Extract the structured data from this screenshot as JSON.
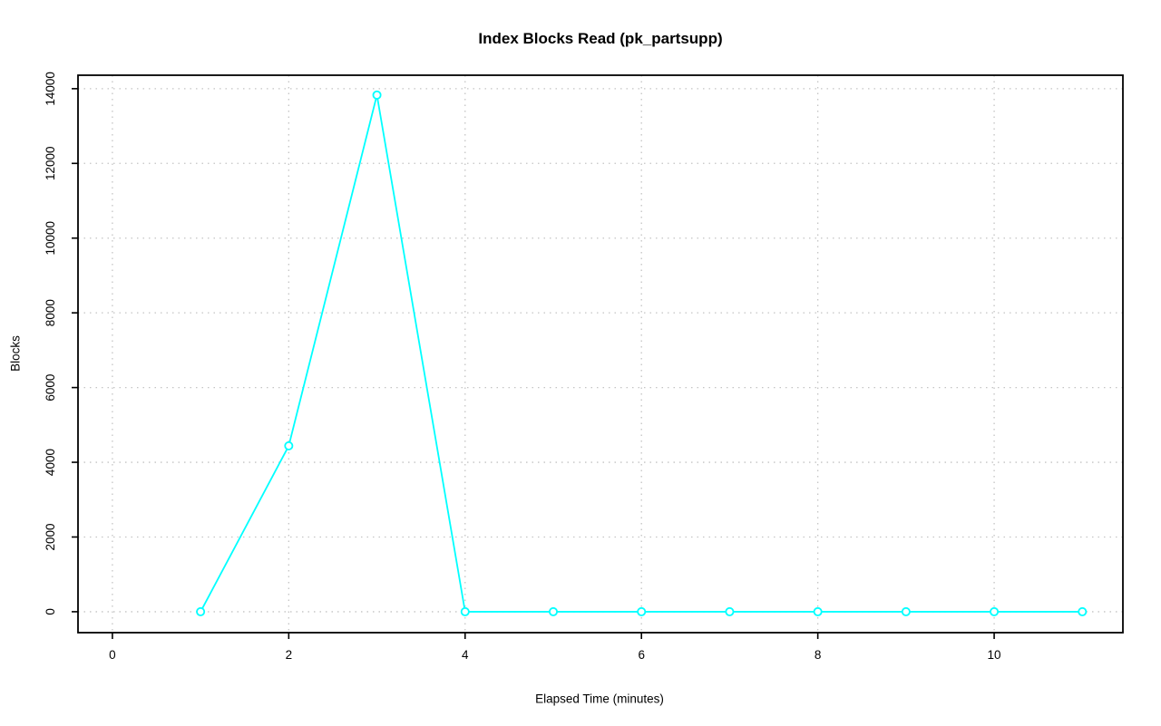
{
  "page": {
    "background": "#ffffff"
  },
  "chart_data": {
    "type": "line",
    "title": "Index Blocks Read (pk_partsupp)",
    "xlabel": "Elapsed Time (minutes)",
    "ylabel": "Blocks",
    "x": [
      1,
      2,
      3,
      4,
      5,
      6,
      7,
      8,
      9,
      10,
      11
    ],
    "values": [
      0,
      4440,
      13830,
      0,
      0,
      0,
      0,
      0,
      0,
      0,
      0
    ],
    "x_ticks": [
      0,
      2,
      4,
      6,
      8,
      10
    ],
    "x_tick_labels": [
      "0",
      "2",
      "4",
      "6",
      "8",
      "10"
    ],
    "y_ticks": [
      0,
      2000,
      4000,
      6000,
      8000,
      10000,
      12000,
      14000
    ],
    "y_tick_labels": [
      "0",
      "2000",
      "4000",
      "6000",
      "8000",
      "10000",
      "12000",
      "14000"
    ],
    "xlim": [
      -0.39,
      11.46
    ],
    "ylim": [
      -560,
      14360
    ],
    "grid": "dotted",
    "legend": "none",
    "marker": "open-circle",
    "line_color": "#00ffff",
    "grid_color": "#c4c4c4",
    "axis_color": "#000000",
    "text_color": "#000000"
  }
}
